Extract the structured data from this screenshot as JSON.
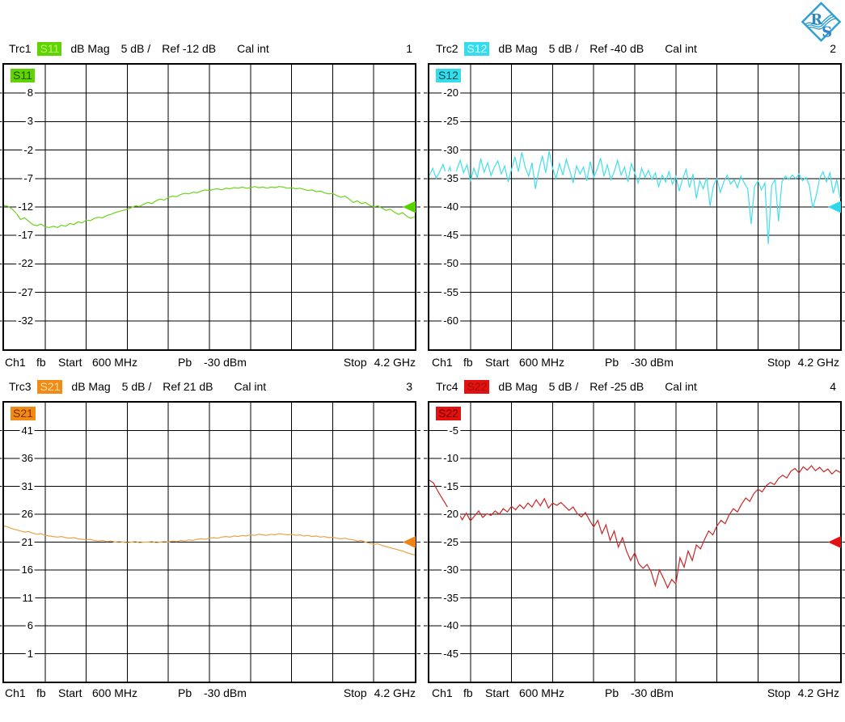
{
  "logo": {
    "r": "R",
    "s": "S",
    "color": "#2d9fd4"
  },
  "footer": {
    "channel": "Ch1",
    "mode": "fb",
    "start_label": "Start",
    "start_value": "600 MHz",
    "power_label": "Pb",
    "power_value": "-30 dBm",
    "stop_label": "Stop",
    "stop_value": "4.2 GHz"
  },
  "quadrants": [
    {
      "header": {
        "trace": "Trc1",
        "param": "S11",
        "format": "dB Mag",
        "scale": "5 dB /",
        "ref": "Ref -12 dB",
        "cal": "Cal int",
        "number": "1"
      },
      "plot_label": "S11",
      "chip_bg": "#5fd400",
      "chip_text_header": "#bdf47d",
      "chip_text_plot": "#234f00"
    },
    {
      "header": {
        "trace": "Trc2",
        "param": "S12",
        "format": "dB Mag",
        "scale": "5 dB /",
        "ref": "Ref -40 dB",
        "cal": "Cal int",
        "number": "2"
      },
      "plot_label": "S12",
      "chip_bg": "#35dcec",
      "chip_text_header": "#d9fdff",
      "chip_text_plot": "#014a52"
    },
    {
      "header": {
        "trace": "Trc3",
        "param": "S21",
        "format": "dB Mag",
        "scale": "5 dB /",
        "ref": "Ref 21 dB",
        "cal": "Cal int",
        "number": "3"
      },
      "plot_label": "S21",
      "chip_bg": "#f28a16",
      "chip_text_header": "#ffe0ac",
      "chip_text_plot": "#7c2d00"
    },
    {
      "header": {
        "trace": "Trc4",
        "param": "S22",
        "format": "dB Mag",
        "scale": "5 dB /",
        "ref": "Ref -25 dB",
        "cal": "Cal int",
        "number": "4"
      },
      "plot_label": "S22",
      "chip_bg": "#e41111",
      "chip_text_header": "#9c1010",
      "chip_text_plot": "#6d0000"
    }
  ],
  "chart_data": [
    {
      "name": "S11",
      "type": "line",
      "window": 1,
      "x_start": "600 MHz",
      "x_stop": "4.2 GHz",
      "y_unit": "dB",
      "ref_level_db": -12,
      "scale_db_per_div": 5,
      "y_top_db": 13,
      "y_bottom_db": -37,
      "grid": [
        10,
        10
      ],
      "legend": "none",
      "y_ticks": [
        "8",
        "3",
        "-2",
        "-7",
        "-12",
        "-17",
        "-22",
        "-27",
        "-32"
      ],
      "color": "#6ad41c",
      "arrow_color": "#55d400",
      "samples_db": [
        -11.7,
        -11.9,
        -12.4,
        -13.1,
        -14.2,
        -13.9,
        -14.5,
        -15.1,
        -15.3,
        -15.0,
        -15.5,
        -15.6,
        -15.4,
        -15.6,
        -15.2,
        -15.4,
        -14.9,
        -15.1,
        -14.6,
        -14.8,
        -14.3,
        -14.4,
        -14.0,
        -13.8,
        -13.9,
        -13.5,
        -13.3,
        -13.0,
        -12.8,
        -12.6,
        -12.4,
        -12.1,
        -11.8,
        -11.9,
        -11.5,
        -11.2,
        -11.4,
        -10.9,
        -10.6,
        -10.8,
        -10.3,
        -10.1,
        -10.2,
        -9.8,
        -9.6,
        -9.7,
        -9.4,
        -9.5,
        -9.2,
        -9.0,
        -9.1,
        -8.9,
        -8.8,
        -9.0,
        -8.7,
        -8.8,
        -8.6,
        -8.7,
        -8.5,
        -8.7,
        -8.6,
        -8.4,
        -8.6,
        -8.5,
        -8.7,
        -8.5,
        -8.6,
        -8.4,
        -8.5,
        -8.7,
        -8.6,
        -8.8,
        -8.7,
        -8.9,
        -9.1,
        -9.0,
        -9.3,
        -9.2,
        -9.5,
        -9.7,
        -9.6,
        -10.0,
        -10.3,
        -10.1,
        -10.6,
        -11.2,
        -10.9,
        -11.4,
        -11.2,
        -11.7,
        -12.0,
        -11.8,
        -12.2,
        -12.6,
        -12.4,
        -12.9,
        -13.3,
        -13.0,
        -13.6,
        -14.0,
        -13.7
      ]
    },
    {
      "name": "S12",
      "type": "line",
      "window": 2,
      "x_start": "600 MHz",
      "x_stop": "4.2 GHz",
      "y_unit": "dB",
      "ref_level_db": -40,
      "scale_db_per_div": 5,
      "y_top_db": -15,
      "y_bottom_db": -65,
      "grid": [
        10,
        10
      ],
      "legend": "none",
      "y_ticks": [
        "-20",
        "-25",
        "-30",
        "-35",
        "-40",
        "-45",
        "-50",
        "-55",
        "-60"
      ],
      "color": "#40dfec",
      "arrow_color": "#2ed7e8",
      "samples_db": [
        -34.5,
        -33.2,
        -35.0,
        -33.8,
        -32.5,
        -34.6,
        -33.0,
        -35.2,
        -33.5,
        -31.8,
        -34.0,
        -32.6,
        -35.5,
        -33.2,
        -34.8,
        -31.5,
        -33.9,
        -32.2,
        -34.5,
        -33.0,
        -31.9,
        -34.2,
        -32.8,
        -35.6,
        -33.4,
        -31.2,
        -33.8,
        -30.4,
        -33.0,
        -34.6,
        -32.2,
        -36.8,
        -33.5,
        -31.0,
        -34.0,
        -30.2,
        -33.2,
        -35.0,
        -32.4,
        -34.4,
        -31.6,
        -33.6,
        -35.8,
        -32.8,
        -34.2,
        -33.0,
        -35.4,
        -32.0,
        -34.8,
        -33.4,
        -31.4,
        -34.6,
        -32.6,
        -35.2,
        -33.8,
        -31.8,
        -34.4,
        -33.0,
        -35.6,
        -32.4,
        -34.0,
        -35.8,
        -33.2,
        -34.8,
        -33.6,
        -35.2,
        -34.0,
        -36.4,
        -34.4,
        -35.6,
        -33.8,
        -36.0,
        -34.6,
        -37.2,
        -35.0,
        -33.4,
        -36.6,
        -34.2,
        -38.5,
        -35.4,
        -36.8,
        -34.8,
        -39.8,
        -36.2,
        -35.0,
        -37.4,
        -35.6,
        -34.4,
        -36.0,
        -35.2,
        -36.6,
        -34.6,
        -35.8,
        -36.8,
        -43.0,
        -36.4,
        -35.4,
        -37.0,
        -35.8,
        -46.5,
        -36.2,
        -35.2,
        -42.5,
        -35.6,
        -34.6,
        -35.2,
        -34.4,
        -35.0,
        -34.2,
        -35.4,
        -34.8,
        -36.2,
        -40.2,
        -38.0,
        -35.0,
        -33.8,
        -35.6,
        -34.0,
        -37.6,
        -35.2,
        -38.5
      ]
    },
    {
      "name": "S21",
      "type": "line",
      "window": 3,
      "x_start": "600 MHz",
      "x_stop": "4.2 GHz",
      "y_unit": "dB",
      "ref_level_db": 21,
      "scale_db_per_div": 5,
      "y_top_db": 46,
      "y_bottom_db": -4,
      "grid": [
        10,
        10
      ],
      "legend": "none",
      "y_ticks": [
        "41",
        "36",
        "31",
        "26",
        "21",
        "16",
        "11",
        "6",
        "1"
      ],
      "color": "#e9a347",
      "arrow_color": "#ee8416",
      "samples_db": [
        23.9,
        23.7,
        23.4,
        23.2,
        23.0,
        22.8,
        22.9,
        22.6,
        22.4,
        22.5,
        22.2,
        22.1,
        22.0,
        21.9,
        22.0,
        21.8,
        21.7,
        21.8,
        21.6,
        21.5,
        21.4,
        21.5,
        21.3,
        21.2,
        21.3,
        21.1,
        21.2,
        21.0,
        21.1,
        21.0,
        20.9,
        21.0,
        21.1,
        20.9,
        21.0,
        21.0,
        21.1,
        20.9,
        21.0,
        21.1,
        21.0,
        21.2,
        21.1,
        21.3,
        21.2,
        21.4,
        21.3,
        21.5,
        21.6,
        21.5,
        21.7,
        21.8,
        21.7,
        21.9,
        22.0,
        21.9,
        22.1,
        22.0,
        22.2,
        22.1,
        22.3,
        22.2,
        22.4,
        22.3,
        22.2,
        22.4,
        22.3,
        22.5,
        22.4,
        22.3,
        22.4,
        22.2,
        22.3,
        22.1,
        22.2,
        22.0,
        22.1,
        21.9,
        22.0,
        21.8,
        21.9,
        21.7,
        21.6,
        21.7,
        21.5,
        21.4,
        21.2,
        21.3,
        21.0,
        20.8,
        20.6,
        20.7,
        20.4,
        20.2,
        20.0,
        19.8,
        19.6,
        19.4,
        19.1,
        18.9,
        18.7
      ]
    },
    {
      "name": "S22",
      "type": "line",
      "window": 4,
      "x_start": "600 MHz",
      "x_stop": "4.2 GHz",
      "y_unit": "dB",
      "ref_level_db": -25,
      "scale_db_per_div": 5,
      "y_top_db": 0,
      "y_bottom_db": -50,
      "grid": [
        10,
        10
      ],
      "legend": "none",
      "y_ticks": [
        "-5",
        "-10",
        "-15",
        "-20",
        "-25",
        "-30",
        "-35",
        "-40",
        "-45"
      ],
      "color": "#cb2626",
      "arrow_color": "#e01212",
      "samples_db": [
        -13.9,
        -14.4,
        -15.8,
        -17.0,
        -18.2,
        -19.5,
        -20.6,
        -19.6,
        -21.0,
        -19.8,
        -21.2,
        -20.3,
        -19.4,
        -20.6,
        -19.9,
        -20.2,
        -19.4,
        -20.0,
        -19.0,
        -19.6,
        -18.6,
        -19.2,
        -18.3,
        -19.0,
        -18.0,
        -18.7,
        -17.4,
        -18.5,
        -17.2,
        -18.9,
        -18.0,
        -18.4,
        -17.9,
        -18.6,
        -19.3,
        -18.7,
        -19.9,
        -20.5,
        -19.7,
        -21.1,
        -22.3,
        -21.1,
        -23.5,
        -21.9,
        -24.7,
        -23.0,
        -25.9,
        -24.2,
        -26.6,
        -28.3,
        -26.9,
        -28.9,
        -29.7,
        -29.0,
        -30.3,
        -32.8,
        -30.0,
        -31.5,
        -33.2,
        -31.7,
        -32.5,
        -27.8,
        -29.5,
        -26.6,
        -28.3,
        -25.5,
        -26.2,
        -24.5,
        -23.0,
        -23.7,
        -22.1,
        -21.1,
        -21.7,
        -20.1,
        -19.0,
        -19.6,
        -18.2,
        -17.1,
        -17.7,
        -16.3,
        -15.5,
        -16.0,
        -14.9,
        -14.3,
        -14.7,
        -13.6,
        -13.0,
        -13.5,
        -12.3,
        -11.8,
        -12.6,
        -11.5,
        -12.1,
        -11.3,
        -12.2,
        -11.6,
        -12.4,
        -11.9,
        -12.8,
        -12.1,
        -12.5
      ]
    }
  ]
}
